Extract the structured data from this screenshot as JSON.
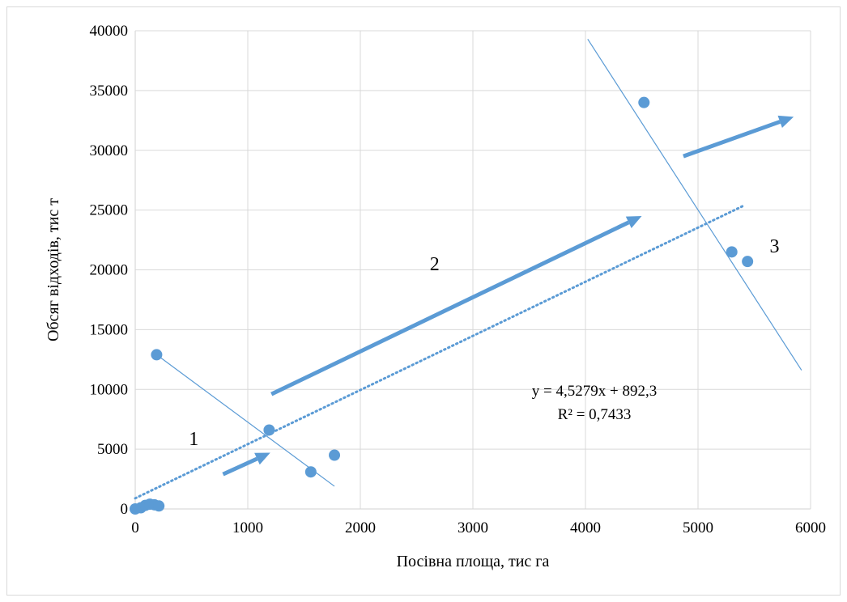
{
  "chart_data": {
    "type": "scatter",
    "xlabel": "Посівна площа, тис га",
    "ylabel": "Обсяг відходів, тис т",
    "xlim": [
      0,
      6000
    ],
    "ylim": [
      0,
      40000
    ],
    "x_ticks": [
      "0",
      "1000",
      "2000",
      "3000",
      "4000",
      "5000",
      "6000"
    ],
    "y_ticks": [
      "0",
      "5000",
      "10000",
      "15000",
      "20000",
      "25000",
      "30000",
      "35000",
      "40000"
    ],
    "grid": true,
    "points": [
      {
        "x": 0,
        "y": 0
      },
      {
        "x": 50,
        "y": 100
      },
      {
        "x": 90,
        "y": 300
      },
      {
        "x": 130,
        "y": 400
      },
      {
        "x": 170,
        "y": 350
      },
      {
        "x": 210,
        "y": 250
      },
      {
        "x": 190,
        "y": 12900
      },
      {
        "x": 1190,
        "y": 6600
      },
      {
        "x": 1560,
        "y": 3100
      },
      {
        "x": 1770,
        "y": 4500
      },
      {
        "x": 4520,
        "y": 34000
      },
      {
        "x": 5300,
        "y": 21500
      },
      {
        "x": 5440,
        "y": 20700
      }
    ],
    "trendline": {
      "style": "dotted",
      "slope": 4.5279,
      "intercept": 892.3,
      "x_range": [
        0,
        5400
      ],
      "equation": "y = 4,5279x + 892,3",
      "r2": "R² = 0,7433"
    },
    "segment_lines": [
      {
        "from": [
          190,
          12900
        ],
        "to": [
          1770,
          1900
        ]
      },
      {
        "from": [
          4020,
          39300
        ],
        "to": [
          5920,
          11600
        ]
      }
    ],
    "arrows": [
      {
        "from": [
          780,
          2900
        ],
        "to": [
          1200,
          4700
        ]
      },
      {
        "from": [
          1210,
          9600
        ],
        "to": [
          4500,
          24500
        ]
      },
      {
        "from": [
          4870,
          29500
        ],
        "to": [
          5850,
          32800
        ]
      }
    ],
    "annotations": [
      {
        "text": "1",
        "x": 520,
        "y": 5900
      },
      {
        "text": "2",
        "x": 2660,
        "y": 20500
      },
      {
        "text": "3",
        "x": 5680,
        "y": 22000
      }
    ],
    "colors": {
      "marker": "#5b9bd5",
      "line": "#5b9bd5",
      "grid": "#d9d9d9",
      "arrow": "#5b9bd5"
    }
  }
}
